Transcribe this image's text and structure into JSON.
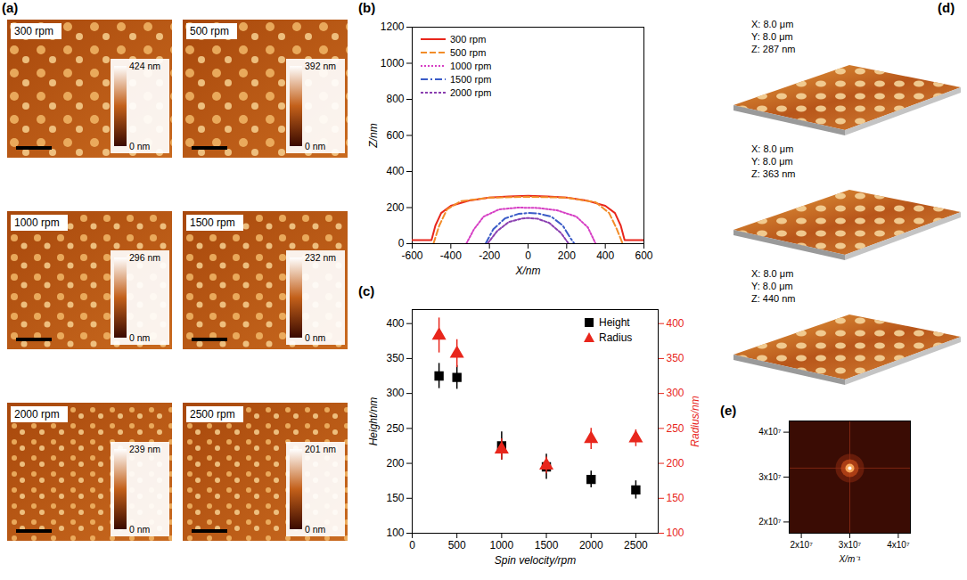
{
  "chart_data": [
    {
      "panel": "(a)",
      "type": "image_grid",
      "images": [
        {
          "label": "300 rpm",
          "colorbar_range": [
            0,
            424
          ],
          "colorbar_ticks": [
            {
              "value": 0,
              "label": "0 nm"
            },
            {
              "value": 424,
              "label": "424 nm"
            }
          ]
        },
        {
          "label": "500 rpm",
          "colorbar_range": [
            0,
            392
          ],
          "colorbar_ticks": [
            {
              "value": 0,
              "label": "0 nm"
            },
            {
              "value": 392,
              "label": "392 nm"
            }
          ]
        },
        {
          "label": "1000 rpm",
          "colorbar_range": [
            0,
            296
          ],
          "colorbar_ticks": [
            {
              "value": 0,
              "label": "0 nm"
            },
            {
              "value": 296,
              "label": "296 nm"
            }
          ]
        },
        {
          "label": "1500 rpm",
          "colorbar_range": [
            0,
            232
          ],
          "colorbar_ticks": [
            {
              "value": 0,
              "label": "0 nm"
            },
            {
              "value": 232,
              "label": "232 nm"
            }
          ]
        },
        {
          "label": "2000 rpm",
          "colorbar_range": [
            0,
            239
          ],
          "colorbar_ticks": [
            {
              "value": 0,
              "label": "0 nm"
            },
            {
              "value": 239,
              "label": "239 nm"
            }
          ]
        },
        {
          "label": "2500 rpm",
          "colorbar_range": [
            0,
            201
          ],
          "colorbar_ticks": [
            {
              "value": 0,
              "label": "0 nm"
            },
            {
              "value": 201,
              "label": "201 nm"
            }
          ]
        }
      ]
    },
    {
      "panel": "(b)",
      "type": "line",
      "x_label": "X/nm",
      "y_label": "Z/nm",
      "xlim": [
        -600,
        600
      ],
      "xticks": [
        -600,
        -400,
        -200,
        0,
        200,
        400,
        600
      ],
      "ylim": [
        0,
        1200
      ],
      "yticks": [
        0,
        200,
        400,
        600,
        800,
        1000,
        1200
      ],
      "legend": "top-left",
      "series": [
        {
          "name": "300 rpm",
          "color": "#e8261c",
          "line_style": "solid",
          "x": [
            -600,
            -500,
            -480,
            -450,
            -400,
            -300,
            -200,
            -100,
            0,
            100,
            200,
            300,
            400,
            450,
            480,
            500,
            600
          ],
          "values": [
            20,
            20,
            100,
            170,
            210,
            240,
            255,
            262,
            265,
            262,
            255,
            240,
            210,
            170,
            100,
            20,
            20
          ]
        },
        {
          "name": "500 rpm",
          "color": "#f28c28",
          "line_style": "dashed",
          "x": [
            -490,
            -460,
            -420,
            -350,
            -200,
            0,
            200,
            350,
            420,
            460,
            490
          ],
          "values": [
            0,
            100,
            190,
            235,
            255,
            260,
            255,
            230,
            170,
            80,
            0
          ]
        },
        {
          "name": "1000 rpm",
          "color": "#d63fc4",
          "line_style": "dotted",
          "x": [
            -320,
            -280,
            -230,
            -150,
            -50,
            50,
            150,
            250,
            310,
            350
          ],
          "values": [
            0,
            80,
            150,
            190,
            200,
            198,
            185,
            150,
            90,
            0
          ]
        },
        {
          "name": "1500 rpm",
          "color": "#3a5bc7",
          "line_style": "dash-dot",
          "x": [
            -220,
            -180,
            -120,
            -50,
            0,
            50,
            120,
            180,
            220,
            240
          ],
          "values": [
            0,
            80,
            140,
            165,
            170,
            168,
            150,
            100,
            30,
            0
          ]
        },
        {
          "name": "2000 rpm",
          "color": "#8a3fb0",
          "line_style": "short-dashed",
          "x": [
            -210,
            -160,
            -100,
            -30,
            0,
            50,
            110,
            170,
            210
          ],
          "values": [
            0,
            70,
            120,
            140,
            142,
            138,
            115,
            60,
            0
          ]
        }
      ]
    },
    {
      "panel": "(c)",
      "type": "scatter",
      "x_label": "Spin velocity/rpm",
      "y_label": "Height/nm",
      "y2_label": "Radius/nm",
      "x": [
        300,
        500,
        1000,
        1500,
        2000,
        2500
      ],
      "xlim": [
        0,
        2750
      ],
      "xticks": [
        0,
        500,
        1000,
        1500,
        2000,
        2500
      ],
      "ylim": [
        100,
        420
      ],
      "yticks": [
        100,
        150,
        200,
        250,
        300,
        350,
        400
      ],
      "y2lim": [
        100,
        420
      ],
      "y2ticks": [
        100,
        150,
        200,
        250,
        300,
        350,
        400
      ],
      "legend": "top-right",
      "series": [
        {
          "name": "Height",
          "color": "#000000",
          "marker": "square",
          "values": [
            325,
            323,
            225,
            195,
            177,
            162
          ],
          "errors": [
            18,
            17,
            20,
            18,
            12,
            13
          ]
        },
        {
          "name": "Radius",
          "color": "#e8261c",
          "marker": "triangle",
          "axis": "y2",
          "values": [
            383,
            357,
            220,
            197,
            235,
            236
          ],
          "errors": [
            25,
            20,
            15,
            12,
            15,
            12
          ]
        }
      ]
    },
    {
      "panel": "(d)",
      "type": "render",
      "images": [
        {
          "lines": [
            "X: 8.0 μm",
            "Y: 8.0 μm",
            "Z: 287 nm"
          ]
        },
        {
          "lines": [
            "X: 8.0 μm",
            "Y: 8.0 μm",
            "Z: 363 nm"
          ]
        },
        {
          "lines": [
            "X: 8.0 μm",
            "Y: 8.0 μm",
            "Z: 440 nm"
          ]
        }
      ]
    },
    {
      "panel": "(e)",
      "type": "heatmap",
      "x_label": "X/m⁻¹",
      "xlim": [
        17500000,
        42500000
      ],
      "xticks": [
        {
          "value": 20000000,
          "label": "2x10⁷"
        },
        {
          "value": 30000000,
          "label": "3x10⁷"
        },
        {
          "value": 40000000,
          "label": "4x10⁷"
        }
      ],
      "ylim": [
        17500000,
        42500000
      ],
      "yticks": [
        {
          "value": 20000000,
          "label": "2x10⁷"
        },
        {
          "value": 30000000,
          "label": "3x10⁷"
        },
        {
          "value": 40000000,
          "label": "4x10⁷"
        }
      ],
      "peak": {
        "x": 30000000,
        "y": 32000000
      }
    }
  ]
}
